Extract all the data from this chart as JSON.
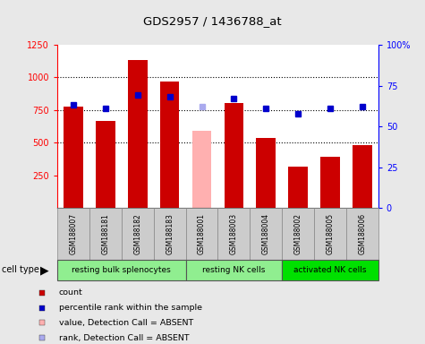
{
  "title": "GDS2957 / 1436788_at",
  "samples": [
    "GSM188007",
    "GSM188181",
    "GSM188182",
    "GSM188183",
    "GSM188001",
    "GSM188003",
    "GSM188004",
    "GSM188002",
    "GSM188005",
    "GSM188006"
  ],
  "counts": [
    775,
    665,
    1130,
    970,
    null,
    805,
    540,
    315,
    395,
    480
  ],
  "absent_counts": [
    null,
    null,
    null,
    null,
    590,
    null,
    null,
    null,
    null,
    null
  ],
  "percentile_ranks": [
    63,
    61,
    69,
    68,
    null,
    67,
    61,
    58,
    61,
    62
  ],
  "absent_ranks": [
    null,
    null,
    null,
    null,
    62,
    null,
    null,
    null,
    null,
    null
  ],
  "cell_groups": [
    {
      "label": "resting bulk splenocytes",
      "start": 0,
      "end": 3,
      "color": "#90ee90"
    },
    {
      "label": "resting NK cells",
      "start": 4,
      "end": 6,
      "color": "#90ee90"
    },
    {
      "label": "activated NK cells",
      "start": 7,
      "end": 9,
      "color": "#00e000"
    }
  ],
  "bar_color_present": "#cc0000",
  "bar_color_absent": "#ffb0b0",
  "dot_color_present": "#0000cc",
  "dot_color_absent": "#aaaaee",
  "ylim_left": [
    0,
    1250
  ],
  "ylim_right": [
    0,
    100
  ],
  "yticks_left": [
    250,
    500,
    750,
    1000,
    1250
  ],
  "yticks_right": [
    0,
    25,
    50,
    75,
    100
  ],
  "grid_values": [
    500,
    750,
    1000
  ],
  "background_color": "#e8e8e8",
  "plot_bg": "#ffffff",
  "legend_items": [
    {
      "label": "count",
      "color": "#cc0000"
    },
    {
      "label": "percentile rank within the sample",
      "color": "#0000cc"
    },
    {
      "label": "value, Detection Call = ABSENT",
      "color": "#ffb0b0"
    },
    {
      "label": "rank, Detection Call = ABSENT",
      "color": "#aaaaee"
    }
  ]
}
